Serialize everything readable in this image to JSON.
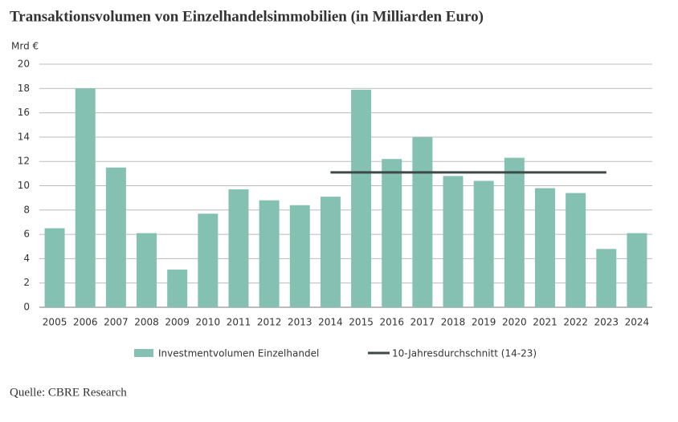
{
  "chart_data": {
    "type": "bar",
    "title": "Transaktionsvolumen von Einzelhandelsimmobilien (in Milliarden Euro)",
    "y_axis_label": "Mrd €",
    "source": "Quelle: CBRE Research",
    "categories": [
      "2005",
      "2006",
      "2007",
      "2008",
      "2009",
      "2010",
      "2011",
      "2012",
      "2013",
      "2014",
      "2015",
      "2016",
      "2017",
      "2018",
      "2019",
      "2020",
      "2021",
      "2022",
      "2023",
      "2024"
    ],
    "series": [
      {
        "name": "Investmentvolumen Einzelhandel",
        "type": "bar",
        "color": "#85c1b3",
        "values": [
          6.5,
          18.0,
          11.5,
          6.1,
          3.1,
          7.7,
          9.7,
          8.8,
          8.4,
          9.1,
          17.9,
          12.2,
          14.0,
          10.8,
          10.4,
          12.3,
          9.8,
          9.4,
          4.8,
          6.1
        ]
      },
      {
        "name": "10-Jahresdurchschnitt (14-23)",
        "type": "line",
        "color": "#3d4a47",
        "values": [
          null,
          null,
          null,
          null,
          null,
          null,
          null,
          null,
          null,
          11.1,
          11.1,
          11.1,
          11.1,
          11.1,
          11.1,
          11.1,
          11.1,
          11.1,
          11.1,
          null
        ]
      }
    ],
    "ylim": [
      0,
      20
    ],
    "yticks": [
      0,
      2,
      4,
      6,
      8,
      10,
      12,
      14,
      16,
      18,
      20
    ],
    "grid": true
  }
}
